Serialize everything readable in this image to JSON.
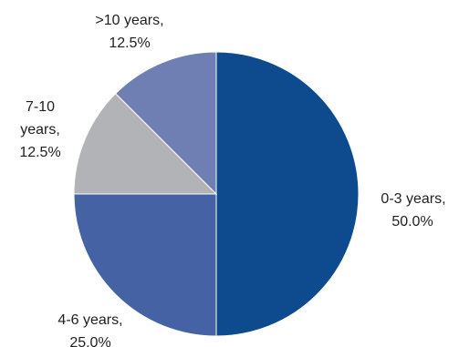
{
  "chart_data": {
    "type": "pie",
    "title": "",
    "slices": [
      {
        "category": "0-3 years",
        "percent_label": "50.0%",
        "value": 50.0,
        "color": "#0e4a8e"
      },
      {
        "category": "4-6 years",
        "percent_label": "25.0%",
        "value": 25.0,
        "color": "#4563a4"
      },
      {
        "category": "7-10 years",
        "percent_label": "12.5%",
        "value": 12.5,
        "color": "#b1b3b6"
      },
      {
        "category": ">10 years",
        "percent_label": "12.5%",
        "value": 12.5,
        "color": "#6f7fb3"
      }
    ],
    "start_angle": "12 o'clock",
    "direction": "clockwise",
    "legend": "none"
  }
}
